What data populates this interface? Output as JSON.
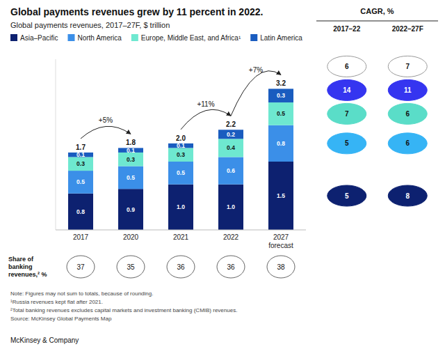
{
  "chart_data": [
    {
      "type": "bar",
      "stacked": true,
      "title": "Global payments revenues grew by 11 percent in 2022.",
      "subtitle": "Global payments revenues, 2017–27F, $ trillion",
      "categories": [
        "2017",
        "2020",
        "2021",
        "2022",
        "2027\nforecast"
      ],
      "series": [
        {
          "name": "Asia–Pacific",
          "color": "#0d2170",
          "values": [
            0.8,
            0.9,
            1.0,
            1.0,
            1.5
          ],
          "value_labels": [
            "0.8",
            "0.9",
            "1.0",
            "1.0",
            "1.5"
          ]
        },
        {
          "name": "North America",
          "color": "#3b8fe8",
          "values": [
            0.5,
            0.5,
            0.5,
            0.6,
            0.8
          ],
          "value_labels": [
            "0.5",
            "0.5",
            "0.5",
            "0.6",
            "0.8"
          ]
        },
        {
          "name": "Europe, Middle East, and Africa¹",
          "color": "#6ee8d0",
          "values": [
            0.3,
            0.3,
            0.3,
            0.4,
            0.5
          ],
          "value_labels": [
            "0.3",
            "0.3",
            "0.3",
            "0.4",
            "0.5"
          ]
        },
        {
          "name": "Latin America",
          "color": "#1a5cbf",
          "values": [
            0.1,
            0.1,
            0.1,
            0.2,
            0.3
          ],
          "value_labels": [
            "0.1",
            "0.1",
            "0.1",
            "0.2",
            "0.3"
          ]
        }
      ],
      "totals": [
        1.7,
        1.8,
        2.0,
        2.2,
        3.2
      ],
      "total_labels": [
        "1.7",
        "1.8",
        "2.0",
        "2.2",
        "3.2"
      ],
      "ylim": [
        0,
        3.75
      ],
      "yticks": [],
      "tick_labels": "x",
      "grid": false,
      "legend": "top",
      "data_labels": true,
      "annotations": [
        {
          "text": "+5%",
          "from": "2017",
          "to": "2020"
        },
        {
          "text": "+11%",
          "from": "2021",
          "to": "2022"
        },
        {
          "text": "+7%",
          "from": "2022",
          "to": "2027\nforecast"
        }
      ],
      "notes": [
        "Note: Figures may not sum to totals, because of rounding.",
        "¹Russia revenues kept flat after 2021.",
        "²Total banking revenues excludes capital markets and investment banking (CMIB) revenues.",
        "Source: McKinsey Global Payments Map"
      ],
      "footer": "McKinsey & Company"
    },
    {
      "type": "table",
      "title": "Share of banking revenues,² %",
      "values": [
        37,
        35,
        36,
        36,
        38
      ]
    },
    {
      "type": "table",
      "title": "CAGR, %",
      "series": [
        {
          "name": "2017–22",
          "values": [
            6,
            14,
            7,
            5,
            5
          ],
          "colors": [
            "#ffffff",
            "#3535f0",
            "#5addc8",
            "#36b4f5",
            "#0d2170"
          ]
        },
        {
          "name": "2022–27F",
          "values": [
            7,
            11,
            6,
            6,
            8
          ],
          "colors": [
            "#ffffff",
            "#3535f0",
            "#5addc8",
            "#36b4f5",
            "#0d2170"
          ]
        }
      ]
    }
  ]
}
